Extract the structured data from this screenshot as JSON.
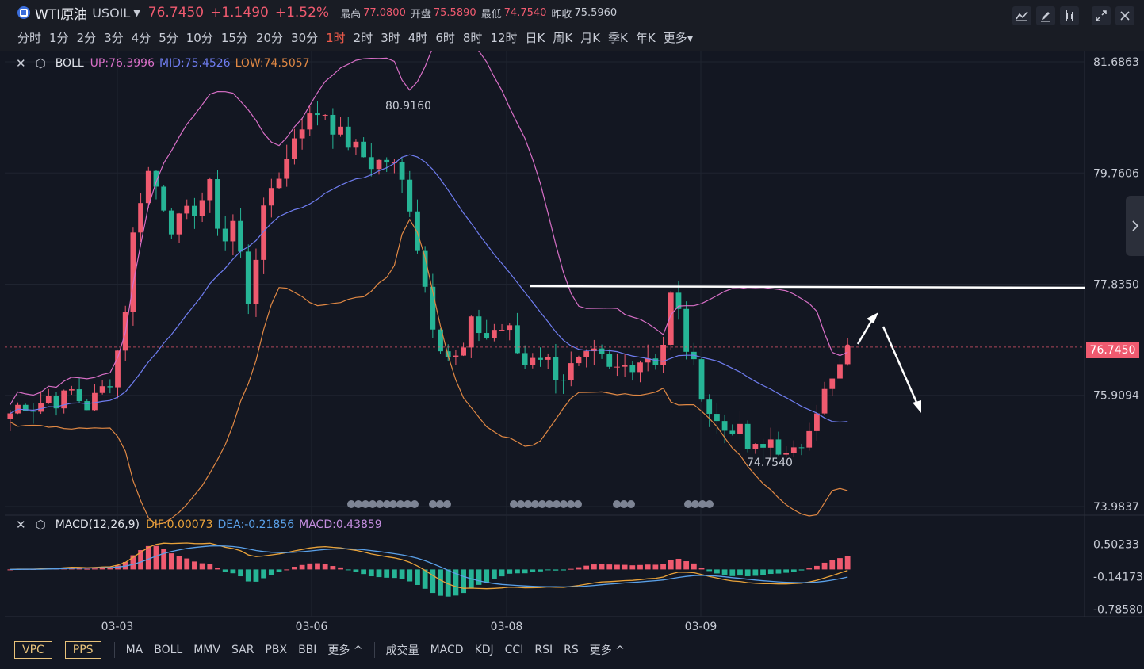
{
  "header": {
    "symbol_name": "WTI原油",
    "symbol_code": "USOIL",
    "last_price": "76.7450",
    "change": "+1.1490",
    "change_pct": "+1.52%",
    "high_label": "最高",
    "high_value": "77.0800",
    "open_label": "开盘",
    "open_value": "75.5890",
    "low_label": "最低",
    "low_value": "74.7540",
    "prev_close_label": "昨收",
    "prev_close_value": "75.5960"
  },
  "timeframes": [
    "分时",
    "1分",
    "2分",
    "3分",
    "4分",
    "5分",
    "10分",
    "15分",
    "20分",
    "30分",
    "1时",
    "2时",
    "3时",
    "4时",
    "6时",
    "8时",
    "12时",
    "日K",
    "周K",
    "月K",
    "季K",
    "年K",
    "更多▾"
  ],
  "active_timeframe": "1时",
  "toolbar_icons": [
    "indicator-icon",
    "draw-icon",
    "chart-type-icon",
    "fullscreen-icon",
    "close-icon"
  ],
  "main_legend": {
    "name": "BOLL",
    "up": "UP:76.3996",
    "mid": "MID:75.4526",
    "low": "LOW:74.5057",
    "up_color": "#d86fc7",
    "mid_color": "#6f7df0",
    "low_color": "#e08844"
  },
  "price_axis": [
    "81.6863",
    "79.7606",
    "77.8350",
    "75.9094",
    "73.9837"
  ],
  "current_price_tag": "76.7450",
  "annotations": {
    "high": "80.9160",
    "low": "74.7540"
  },
  "macd_legend": {
    "name": "MACD(12,26,9)",
    "dif": "DIF:0.00073",
    "dea": "DEA:-0.21856",
    "macd": "MACD:0.43859",
    "dif_color": "#e8a23a",
    "dea_color": "#5aa0e8",
    "macd_color": "#c58ee0"
  },
  "macd_axis": [
    "0.50233",
    "-0.14173",
    "-0.78580"
  ],
  "dates": [
    "03-03",
    "03-06",
    "03-08",
    "03-09"
  ],
  "bottom_bar": {
    "boxes": [
      "VPC",
      "PPS"
    ],
    "main_inds": [
      "MA",
      "BOLL",
      "MMV",
      "SAR",
      "PBX",
      "BBI",
      "更多 ^"
    ],
    "sub_inds": [
      "成交量",
      "MACD",
      "KDJ",
      "CCI",
      "RSI",
      "RS",
      "更多 ^"
    ]
  },
  "colors": {
    "up": "#ef5a6f",
    "down": "#26b596",
    "bg": "#131722"
  },
  "chart_data": {
    "type": "candlestick",
    "symbol": "USOIL",
    "timeframe": "1时",
    "x": [
      "03-03",
      "03-06",
      "03-08",
      "03-09"
    ],
    "ohlc_path": [
      75.6,
      75.8,
      75.7,
      75.9,
      75.8,
      76.0,
      75.7,
      75.9,
      76.2,
      77.0,
      79.0,
      79.8,
      79.4,
      78.8,
      79.0,
      79.2,
      79.5,
      78.5,
      79.0,
      77.5,
      78.8,
      79.6,
      79.9,
      80.6,
      80.7,
      80.9,
      80.5,
      80.3,
      80.1,
      79.9,
      80.0,
      79.8,
      79.2,
      78.0,
      77.0,
      76.6,
      76.5,
      77.2,
      76.9,
      77.1,
      77.0,
      76.4,
      76.7,
      76.5,
      76.2,
      76.4,
      76.5,
      76.6,
      76.3,
      76.4,
      76.5,
      76.6,
      76.5,
      77.8,
      76.8,
      76.2,
      75.6,
      75.3,
      75.4,
      75.0,
      74.9,
      75.2,
      74.8,
      74.9,
      75.5,
      75.9,
      76.2,
      76.7
    ],
    "ylim": [
      73.9837,
      81.6863
    ],
    "price_axis": [
      81.6863,
      79.7606,
      77.835,
      75.9094,
      73.9837
    ],
    "last": 76.745,
    "high_marker": 80.916,
    "low_marker": 74.754,
    "horizontal_line": 77.8,
    "boll": {
      "up": 76.3996,
      "mid": 75.4526,
      "low": 74.5057
    },
    "macd": {
      "dif": 0.00073,
      "dea": -0.21856,
      "macd": 0.43859,
      "ylim": [
        -0.9,
        0.85
      ],
      "axis": [
        0.50233,
        -0.14173,
        -0.7858
      ]
    }
  }
}
